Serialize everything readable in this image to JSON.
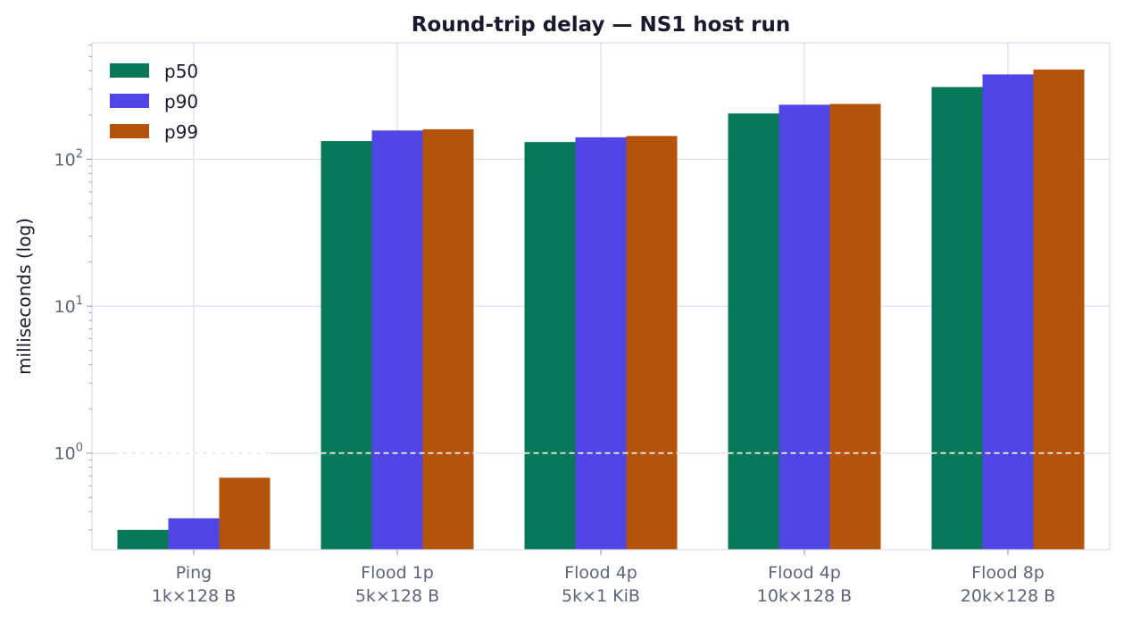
{
  "chart_data": {
    "type": "bar",
    "title": "Round-trip delay — NS1 host run",
    "xlabel": "",
    "ylabel": "milliseconds (log)",
    "yscale": "log",
    "ylim": [
      0.22,
      620
    ],
    "yticks": [
      1,
      10,
      100
    ],
    "ytick_labels": [
      {
        "base": "10",
        "exp": "0"
      },
      {
        "base": "10",
        "exp": "1"
      },
      {
        "base": "10",
        "exp": "2"
      }
    ],
    "categories": [
      [
        "Ping",
        "1k×128 B"
      ],
      [
        "Flood 1p",
        "5k×128 B"
      ],
      [
        "Flood 4p",
        "5k×1 KiB"
      ],
      [
        "Flood 4p",
        "10k×128 B"
      ],
      [
        "Flood 8p",
        "20k×128 B"
      ]
    ],
    "series": [
      {
        "name": "p50",
        "color": "#077857",
        "values": [
          0.3,
          133,
          131,
          205,
          310
        ]
      },
      {
        "name": "p90",
        "color": "#4f46e5",
        "values": [
          0.36,
          157,
          141,
          235,
          378
        ]
      },
      {
        "name": "p99",
        "color": "#b45309",
        "values": [
          0.68,
          160,
          144,
          238,
          408
        ]
      }
    ],
    "reference_line": {
      "value": 1,
      "style": "dashed",
      "color": "#ffffff"
    },
    "grid": true,
    "legend_position": "top-left"
  }
}
